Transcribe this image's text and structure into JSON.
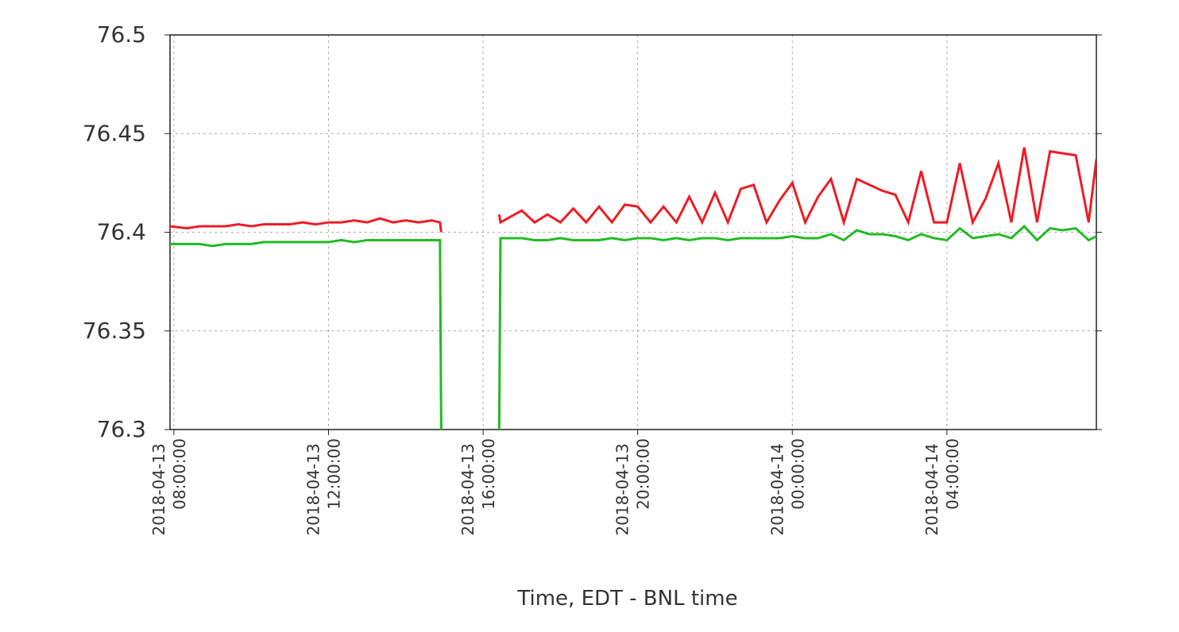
{
  "chart_data": {
    "type": "line",
    "xlabel": "Time, EDT - BNL time",
    "x": [
      "2018-04-13 07:54",
      "2018-04-13 08:20",
      "2018-04-13 08:40",
      "2018-04-13 09:00",
      "2018-04-13 09:20",
      "2018-04-13 09:40",
      "2018-04-13 10:00",
      "2018-04-13 10:20",
      "2018-04-13 10:40",
      "2018-04-13 11:00",
      "2018-04-13 11:20",
      "2018-04-13 11:40",
      "2018-04-13 12:00",
      "2018-04-13 12:20",
      "2018-04-13 12:40",
      "2018-04-13 13:00",
      "2018-04-13 13:20",
      "2018-04-13 13:40",
      "2018-04-13 14:00",
      "2018-04-13 14:20",
      "2018-04-13 14:40",
      "2018-04-13 14:53",
      "2018-04-13 14:55",
      "2018-04-13 15:40",
      "2018-04-13 16:25",
      "2018-04-13 16:27",
      "2018-04-13 17:00",
      "2018-04-13 17:20",
      "2018-04-13 17:40",
      "2018-04-13 18:00",
      "2018-04-13 18:20",
      "2018-04-13 18:40",
      "2018-04-13 19:00",
      "2018-04-13 19:20",
      "2018-04-13 19:40",
      "2018-04-13 20:00",
      "2018-04-13 20:20",
      "2018-04-13 20:40",
      "2018-04-13 21:00",
      "2018-04-13 21:20",
      "2018-04-13 21:40",
      "2018-04-13 22:00",
      "2018-04-13 22:20",
      "2018-04-13 22:40",
      "2018-04-13 23:00",
      "2018-04-13 23:20",
      "2018-04-13 23:40",
      "2018-04-14 00:00",
      "2018-04-14 00:20",
      "2018-04-14 00:40",
      "2018-04-14 01:00",
      "2018-04-14 01:20",
      "2018-04-14 01:40",
      "2018-04-14 02:00",
      "2018-04-14 02:20",
      "2018-04-14 02:40",
      "2018-04-14 03:00",
      "2018-04-14 03:20",
      "2018-04-14 03:40",
      "2018-04-14 04:00",
      "2018-04-14 04:20",
      "2018-04-14 04:40",
      "2018-04-14 05:00",
      "2018-04-14 05:20",
      "2018-04-14 05:40",
      "2018-04-14 06:00",
      "2018-04-14 06:20",
      "2018-04-14 06:40",
      "2018-04-14 07:00",
      "2018-04-14 07:20",
      "2018-04-14 07:40",
      "2018-04-14 07:52"
    ],
    "series": [
      {
        "color": "#ee1c24",
        "values": [
          76.403,
          76.402,
          76.403,
          76.403,
          76.403,
          76.404,
          76.403,
          76.404,
          76.404,
          76.404,
          76.405,
          76.404,
          76.405,
          76.405,
          76.406,
          76.405,
          76.407,
          76.405,
          76.406,
          76.405,
          76.406,
          76.405,
          76.4,
          null,
          76.409,
          76.405,
          76.411,
          76.405,
          76.409,
          76.405,
          76.412,
          76.405,
          76.413,
          76.405,
          76.414,
          76.413,
          76.405,
          76.413,
          76.405,
          76.418,
          76.405,
          76.42,
          76.405,
          76.422,
          76.424,
          76.405,
          76.416,
          76.425,
          76.405,
          76.418,
          76.427,
          76.405,
          76.427,
          76.424,
          76.421,
          76.419,
          76.405,
          76.431,
          76.405,
          76.405,
          76.435,
          76.405,
          76.417,
          76.435,
          76.405,
          76.443,
          76.405,
          76.441,
          76.44,
          76.439,
          76.405,
          76.437
        ]
      },
      {
        "color": "#22bb22",
        "values": [
          76.394,
          76.394,
          76.394,
          76.393,
          76.394,
          76.394,
          76.394,
          76.395,
          76.395,
          76.395,
          76.395,
          76.395,
          76.395,
          76.396,
          76.395,
          76.396,
          76.396,
          76.396,
          76.396,
          76.396,
          76.396,
          76.396,
          76.3,
          null,
          76.3,
          76.397,
          76.397,
          76.396,
          76.396,
          76.397,
          76.396,
          76.396,
          76.396,
          76.397,
          76.396,
          76.397,
          76.397,
          76.396,
          76.397,
          76.396,
          76.397,
          76.397,
          76.396,
          76.397,
          76.397,
          76.397,
          76.397,
          76.398,
          76.397,
          76.397,
          76.399,
          76.396,
          76.401,
          76.399,
          76.399,
          76.398,
          76.396,
          76.399,
          76.397,
          76.396,
          76.402,
          76.397,
          76.398,
          76.399,
          76.397,
          76.403,
          76.396,
          76.402,
          76.401,
          76.402,
          76.396,
          76.398
        ]
      }
    ],
    "xlim": [
      "2018-04-13 07:54",
      "2018-04-14 07:52"
    ],
    "xticks": [
      "2018-04-13 08:00:00",
      "2018-04-13 12:00:00",
      "2018-04-13 16:00:00",
      "2018-04-13 20:00:00",
      "2018-04-14 00:00:00",
      "2018-04-14 04:00:00"
    ],
    "ylim": [
      76.3,
      76.5
    ],
    "yticks": [
      76.3,
      76.35,
      76.4,
      76.45,
      76.5
    ],
    "grid": true
  }
}
